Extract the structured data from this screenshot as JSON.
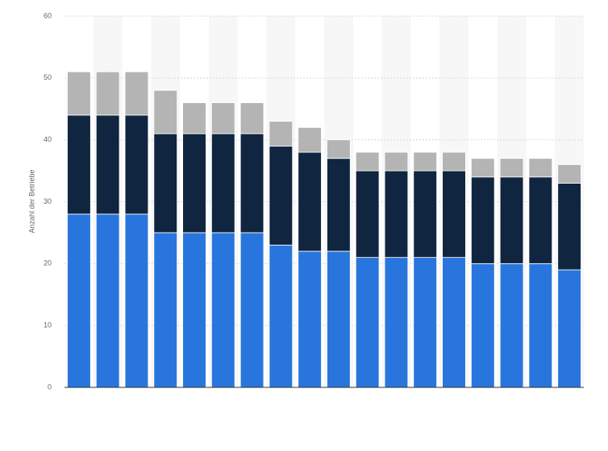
{
  "chart_data": {
    "type": "stacked_bar",
    "y_label": "Anzahl der Betriebe",
    "categories": [
      null,
      null,
      null,
      null,
      null,
      null,
      null,
      null,
      null,
      null,
      null,
      null,
      null,
      null,
      null,
      null,
      null,
      null
    ],
    "series": [
      {
        "color": "#2876dd",
        "values": [
          28,
          28,
          28,
          25,
          25,
          25,
          25,
          23,
          22,
          22,
          21,
          21,
          21,
          21,
          20,
          20,
          20,
          19
        ]
      },
      {
        "color": "#10253f",
        "values": [
          16,
          16,
          16,
          16,
          16,
          16,
          16,
          16,
          16,
          15,
          14,
          14,
          14,
          14,
          14,
          14,
          14,
          14
        ]
      },
      {
        "color": "#b4b4b4",
        "values": [
          7,
          7,
          7,
          7,
          5,
          5,
          5,
          4,
          4,
          3,
          3,
          3,
          3,
          3,
          3,
          3,
          3,
          3
        ]
      }
    ],
    "ylim": [
      0,
      60
    ],
    "yticks": [
      0,
      10,
      20,
      30,
      40,
      50,
      60
    ],
    "grid": true
  }
}
